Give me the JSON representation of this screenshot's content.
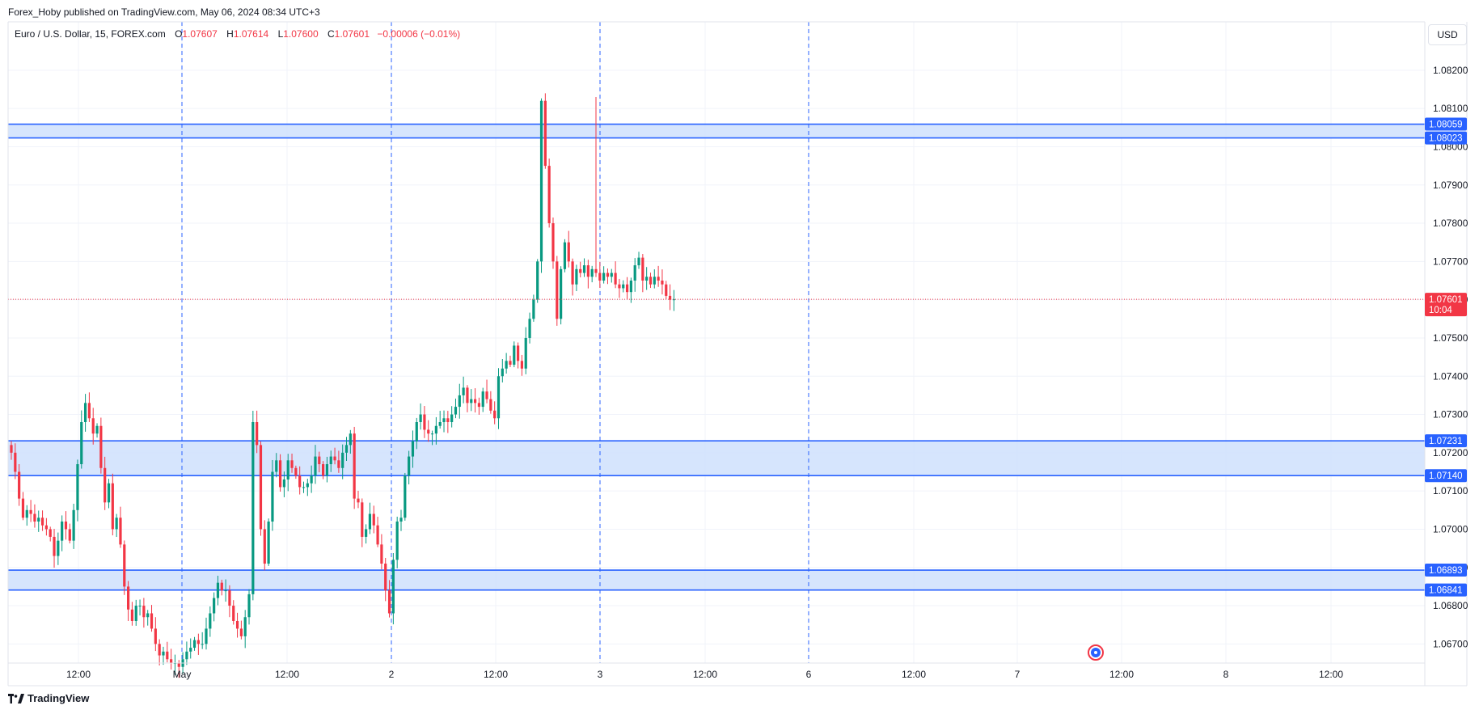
{
  "header": {
    "publish_text": "Forex_Hoby published on TradingView.com, May 06, 2024 08:34 UTC+3",
    "symbol": "Euro / U.S. Dollar, 15, FOREX.com",
    "open_label": "O",
    "open_value": "1.07607",
    "high_label": "H",
    "high_value": "1.07614",
    "low_label": "L",
    "low_value": "1.07600",
    "close_label": "C",
    "close_value": "1.07601",
    "change_value": "−0.00006 (−0.01%)"
  },
  "currency_button": "USD",
  "brand": {
    "name": "TradingView"
  },
  "icons": {
    "brand_logo": "tradingview-logo-icon",
    "event_marker": "economic-event-icon"
  },
  "colors": {
    "up": "#089981",
    "down": "#f23645",
    "zone_fill": "#cfe0fd",
    "zone_line": "#2962ff",
    "session_line": "#2962ff",
    "last_price": "#f23645",
    "grid": "#f0f3fa"
  },
  "chart_data": {
    "type": "candlestick",
    "title": "",
    "ylim": [
      1.0665,
      1.0832
    ],
    "y_ticks": [
      "1.08200",
      "1.08100",
      "1.08000",
      "1.07900",
      "1.07800",
      "1.07700",
      "1.07600",
      "1.07500",
      "1.07400",
      "1.07300",
      "1.07200",
      "1.07100",
      "1.07000",
      "1.06900",
      "1.06800",
      "1.06700"
    ],
    "x_ticks": [
      "12:00",
      "May",
      "12:00",
      "2",
      "12:00",
      "3",
      "12:00",
      "6",
      "12:00",
      "7",
      "12:00",
      "8",
      "12:00"
    ],
    "session_separators": [
      "May",
      "2",
      "3",
      "6"
    ],
    "zones": [
      {
        "top": 1.08059,
        "bottom": 1.08023,
        "top_label": "1.08059",
        "bottom_label": "1.08023"
      },
      {
        "top": 1.07231,
        "bottom": 1.0714,
        "top_label": "1.07231",
        "bottom_label": "1.07140"
      },
      {
        "top": 1.06893,
        "bottom": 1.06841,
        "top_label": "1.06893",
        "bottom_label": "1.06841"
      }
    ],
    "last_price": {
      "value": 1.07601,
      "label": "1.07601",
      "countdown": "10:04"
    },
    "closes": [
      1.072,
      1.0715,
      1.0708,
      1.0703,
      1.0705,
      1.0704,
      1.0702,
      1.0703,
      1.0701,
      1.07,
      1.0698,
      1.0693,
      1.0697,
      1.0702,
      1.07,
      1.0697,
      1.0705,
      1.0717,
      1.0728,
      1.0733,
      1.0729,
      1.0725,
      1.0727,
      1.0716,
      1.0707,
      1.0712,
      1.07,
      1.0703,
      1.0696,
      1.0685,
      1.0679,
      1.0676,
      1.068,
      1.068,
      1.0677,
      1.0678,
      1.0674,
      1.067,
      1.0667,
      1.0668,
      1.0666,
      1.0665,
      1.0665,
      1.0664,
      1.0666,
      1.0668,
      1.0669,
      1.0671,
      1.067,
      1.067,
      1.0674,
      1.0678,
      1.0682,
      1.0686,
      1.0684,
      1.0684,
      1.068,
      1.0676,
      1.0674,
      1.0672,
      1.0677,
      1.0683,
      1.0728,
      1.0722,
      1.07,
      1.0691,
      1.0702,
      1.0715,
      1.0718,
      1.0711,
      1.0713,
      1.0718,
      1.0716,
      1.0714,
      1.0711,
      1.0711,
      1.0712,
      1.0714,
      1.0719,
      1.0717,
      1.0714,
      1.0717,
      1.0719,
      1.0718,
      1.0716,
      1.072,
      1.0722,
      1.0725,
      1.0708,
      1.0707,
      1.0698,
      1.07,
      1.0704,
      1.0701,
      1.0696,
      1.0691,
      1.0684,
      1.0678,
      1.0692,
      1.0702,
      1.0703,
      1.0714,
      1.0719,
      1.0723,
      1.0728,
      1.073,
      1.0726,
      1.0725,
      1.0725,
      1.0727,
      1.0728,
      1.0729,
      1.0728,
      1.073,
      1.0732,
      1.0735,
      1.0737,
      1.0733,
      1.0734,
      1.0733,
      1.0732,
      1.0736,
      1.0734,
      1.0731,
      1.0729,
      1.074,
      1.0742,
      1.0744,
      1.0743,
      1.0748,
      1.0744,
      1.0742,
      1.075,
      1.0755,
      1.076,
      1.077,
      1.0812,
      1.0795,
      1.078,
      1.077,
      1.0755,
      1.0768,
      1.0775,
      1.077,
      1.0764,
      1.0768,
      1.0767,
      1.0769,
      1.0766,
      1.0768,
      1.0767,
      1.0765,
      1.0767,
      1.0766,
      1.0767,
      1.0764,
      1.0763,
      1.0764,
      1.0762,
      1.0765,
      1.0769,
      1.0771,
      1.0765,
      1.0766,
      1.0764,
      1.0766,
      1.0765,
      1.0764,
      1.0761,
      1.076,
      1.07601
    ]
  }
}
